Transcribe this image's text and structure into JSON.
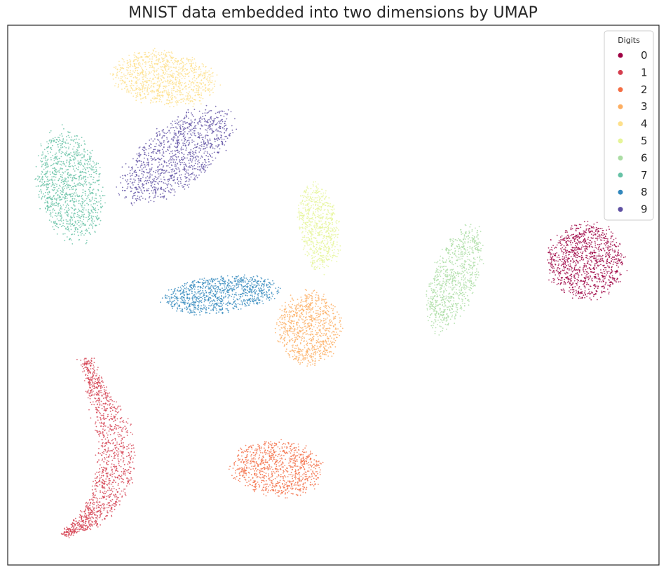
{
  "chart_data": {
    "type": "scatter",
    "title": "MNIST data embedded into two dimensions by UMAP",
    "xlabel": "",
    "ylabel": "",
    "axis_ticks": "none",
    "grid": false,
    "legend": {
      "title": "Digits",
      "placement": "top-right",
      "entries": [
        "0",
        "1",
        "2",
        "3",
        "4",
        "5",
        "6",
        "7",
        "8",
        "9"
      ]
    },
    "series": [
      {
        "name": "0",
        "color": "#9e0142",
        "marker": "point",
        "cluster": {
          "center": [
            836,
            372
          ],
          "spread": [
            55,
            54
          ],
          "angle": 0,
          "shape": "ellipse",
          "n": 1100
        }
      },
      {
        "name": "1",
        "color": "#d53e4f",
        "marker": "point",
        "cluster": {
          "shape": "arc",
          "path": [
            [
              122,
              512
            ],
            [
              143,
              570
            ],
            [
              168,
              630
            ],
            [
              162,
              692
            ],
            [
              135,
              735
            ],
            [
              92,
              762
            ]
          ],
          "width": 26,
          "n": 1300
        }
      },
      {
        "name": "2",
        "color": "#f46d43",
        "marker": "point",
        "cluster": {
          "center": [
            396,
            668
          ],
          "spread": [
            65,
            40
          ],
          "angle": 5,
          "shape": "ellipse",
          "n": 900
        }
      },
      {
        "name": "3",
        "color": "#fdae61",
        "marker": "point",
        "cluster": {
          "center": [
            440,
            468
          ],
          "spread": [
            46,
            52
          ],
          "angle": 0,
          "shape": "ellipse",
          "n": 850
        }
      },
      {
        "name": "4",
        "color": "#fee08b",
        "marker": "point",
        "cluster": {
          "center": [
            235,
            112
          ],
          "spread": [
            75,
            38
          ],
          "angle": 8,
          "shape": "ellipse",
          "n": 1000
        }
      },
      {
        "name": "5",
        "color": "#e6f598",
        "marker": "point",
        "cluster": {
          "center": [
            455,
            325
          ],
          "spread": [
            28,
            62
          ],
          "angle": -8,
          "shape": "ellipse",
          "n": 700
        }
      },
      {
        "name": "6",
        "color": "#abdda4",
        "marker": "point",
        "cluster": {
          "center": [
            648,
            398
          ],
          "spread": [
            32,
            78
          ],
          "angle": 20,
          "shape": "ellipse",
          "n": 850
        }
      },
      {
        "name": "7",
        "color": "#66c2a5",
        "marker": "point",
        "cluster": {
          "center": [
            100,
            265
          ],
          "spread": [
            46,
            80
          ],
          "angle": -10,
          "shape": "ellipse",
          "n": 1100
        }
      },
      {
        "name": "8",
        "color": "#3288bd",
        "marker": "point",
        "cluster": {
          "center": [
            315,
            420
          ],
          "spread": [
            82,
            26
          ],
          "angle": -6,
          "shape": "ellipse",
          "n": 950
        }
      },
      {
        "name": "9",
        "color": "#5e4fa2",
        "marker": "point",
        "cluster": {
          "center": [
            252,
            222
          ],
          "spread": [
            95,
            44
          ],
          "angle": -38,
          "shape": "ellipse",
          "n": 1150
        }
      }
    ]
  }
}
